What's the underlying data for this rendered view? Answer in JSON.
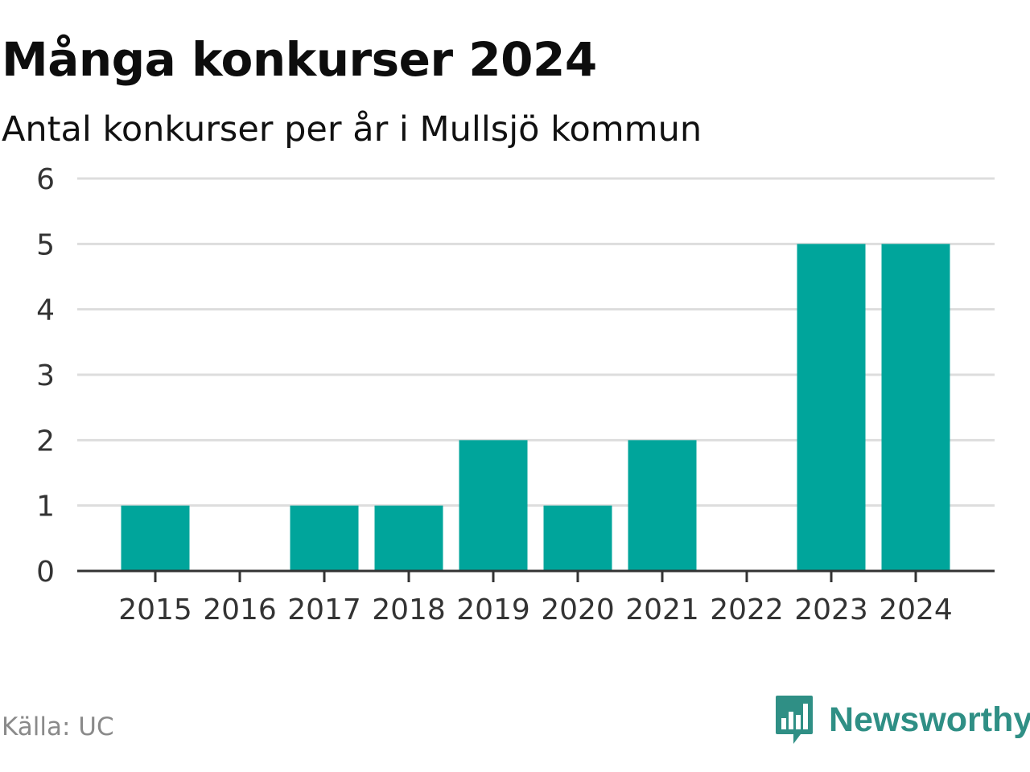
{
  "header": {
    "title": "Många konkurser 2024",
    "subtitle": "Antal konkurser per år i Mullsjö kommun"
  },
  "footer": {
    "source": "Källa: UC",
    "brand_name": "Newsworthy",
    "brand_icon": "bar-chart-speech-bubble-icon"
  },
  "colors": {
    "bar": "#00a59b",
    "grid": "#dddddd",
    "axis": "#333333",
    "brand": "#2f8f85"
  },
  "chart_data": {
    "type": "bar",
    "title": "Många konkurser 2024",
    "subtitle": "Antal konkurser per år i Mullsjö kommun",
    "xlabel": "",
    "ylabel": "",
    "categories": [
      "2015",
      "2016",
      "2017",
      "2018",
      "2019",
      "2020",
      "2021",
      "2022",
      "2023",
      "2024"
    ],
    "values": [
      1,
      0,
      1,
      1,
      2,
      1,
      2,
      0,
      5,
      5
    ],
    "ylim": [
      0,
      6
    ],
    "yticks": [
      0,
      1,
      2,
      3,
      4,
      5,
      6
    ],
    "grid": true,
    "legend": "none"
  }
}
